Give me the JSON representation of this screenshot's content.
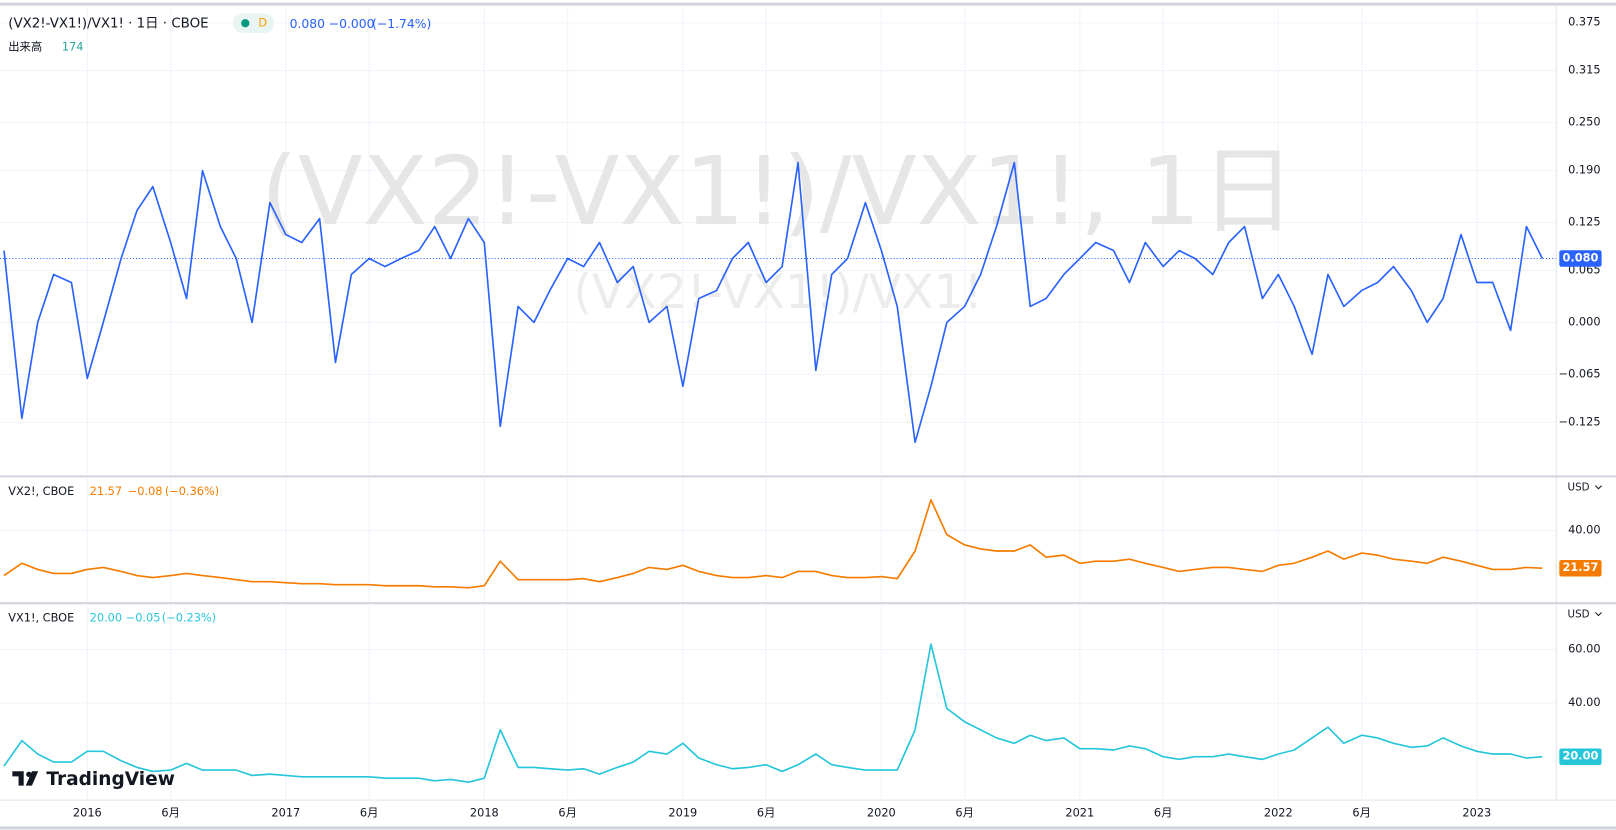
{
  "time_axis": {
    "xlim": [
      2015.56,
      2023.4
    ],
    "xticks": [
      2016,
      {
        "value": 2016.42,
        "label": "6月"
      },
      2017,
      {
        "value": 2017.42,
        "label": "6月"
      },
      2018,
      {
        "value": 2018.42,
        "label": "6月"
      },
      2019,
      {
        "value": 2019.42,
        "label": "6月"
      },
      2020,
      {
        "value": 2020.42,
        "label": "6月"
      },
      2021,
      {
        "value": 2021.42,
        "label": "6月"
      },
      2022,
      {
        "value": 2022.42,
        "label": "6月"
      },
      2023
    ],
    "x": [
      2015.58,
      2015.67,
      2015.75,
      2015.83,
      2015.92,
      2016,
      2016.08,
      2016.17,
      2016.25,
      2016.33,
      2016.42,
      2016.5,
      2016.58,
      2016.67,
      2016.75,
      2016.83,
      2016.92,
      2017,
      2017.08,
      2017.17,
      2017.25,
      2017.33,
      2017.42,
      2017.5,
      2017.58,
      2017.67,
      2017.75,
      2017.83,
      2017.92,
      2018,
      2018.08,
      2018.17,
      2018.25,
      2018.33,
      2018.42,
      2018.5,
      2018.58,
      2018.67,
      2018.75,
      2018.83,
      2018.92,
      2019,
      2019.08,
      2019.17,
      2019.25,
      2019.33,
      2019.42,
      2019.5,
      2019.58,
      2019.67,
      2019.75,
      2019.83,
      2019.92,
      2020,
      2020.08,
      2020.17,
      2020.25,
      2020.33,
      2020.42,
      2020.5,
      2020.58,
      2020.67,
      2020.75,
      2020.83,
      2020.92,
      2021,
      2021.08,
      2021.17,
      2021.25,
      2021.33,
      2021.42,
      2021.5,
      2021.58,
      2021.67,
      2021.75,
      2021.83,
      2021.92,
      2022,
      2022.08,
      2022.17,
      2022.25,
      2022.33,
      2022.42,
      2022.5,
      2022.58,
      2022.67,
      2022.75,
      2022.83,
      2022.92,
      2023,
      2023.08,
      2023.17,
      2023.25,
      2023.33
    ]
  },
  "chart_data": [
    {
      "type": "line",
      "color": "#2962ff",
      "legend": {
        "title": "(VX2!-VX1!)/VX1! · 1日 · CBOE",
        "interval": "D",
        "last": "0.080",
        "change": "−0.000",
        "change_pct": "(−1.74%)"
      },
      "volume": {
        "label": "出来高",
        "last": "174"
      },
      "watermark": [
        "(VX2!-VX1!)/VX1!, 1日",
        "(VX2!-VX1!)/VX1!"
      ],
      "price_tag": "0.080",
      "ylim": [
        -0.19,
        0.397
      ],
      "yticks": [
        {
          "value": 0.375,
          "label": "0.375"
        },
        {
          "value": 0.315,
          "label": "0.315"
        },
        {
          "value": 0.25,
          "label": "0.250"
        },
        {
          "value": 0.19,
          "label": "0.190"
        },
        {
          "value": 0.125,
          "label": "0.125"
        },
        {
          "value": 0.065,
          "label": "0.065"
        },
        {
          "value": 0,
          "label": "0.000"
        },
        {
          "value": -0.065,
          "label": "−0.065"
        },
        {
          "value": -0.125,
          "label": "−0.125"
        }
      ],
      "values": [
        0.09,
        -0.12,
        0.0,
        0.06,
        0.05,
        -0.07,
        0.0,
        0.08,
        0.14,
        0.17,
        0.1,
        0.03,
        0.19,
        0.12,
        0.08,
        0.0,
        0.15,
        0.11,
        0.1,
        0.13,
        -0.05,
        0.06,
        0.08,
        0.07,
        0.08,
        0.09,
        0.12,
        0.08,
        0.13,
        0.1,
        -0.13,
        0.02,
        0.0,
        0.04,
        0.08,
        0.07,
        0.1,
        0.05,
        0.07,
        0.0,
        0.02,
        -0.08,
        0.03,
        0.04,
        0.08,
        0.1,
        0.05,
        0.07,
        0.2,
        -0.06,
        0.06,
        0.08,
        0.15,
        0.09,
        0.02,
        -0.15,
        -0.08,
        0.0,
        0.02,
        0.06,
        0.12,
        0.2,
        0.02,
        0.03,
        0.06,
        0.08,
        0.1,
        0.09,
        0.05,
        0.1,
        0.07,
        0.09,
        0.08,
        0.06,
        0.1,
        0.12,
        0.03,
        0.06,
        0.02,
        -0.04,
        0.06,
        0.02,
        0.04,
        0.05,
        0.07,
        0.04,
        0.0,
        0.03,
        0.11,
        0.05,
        0.05,
        -0.01,
        0.12,
        0.08
      ]
    },
    {
      "type": "line",
      "color": "#f57c00",
      "legend": {
        "title": "VX2!, CBOE",
        "last": "21.57",
        "change": "−0.08",
        "change_pct": "(−0.36%)"
      },
      "currency": "USD",
      "price_tag": "21.57",
      "ylim": [
        5.5,
        65.5
      ],
      "yticks": [
        {
          "value": 40,
          "label": "40.00"
        }
      ],
      "values": [
        18,
        24,
        21,
        19,
        19,
        21,
        22,
        20,
        18,
        17,
        18,
        19,
        18,
        17,
        16,
        15,
        15,
        14.5,
        14,
        14,
        13.5,
        13.5,
        13.5,
        13,
        13,
        13,
        12.5,
        12.5,
        12,
        13,
        25,
        16,
        16,
        16,
        16,
        16.5,
        15,
        17,
        19,
        22,
        21,
        23,
        20,
        18,
        17,
        17,
        18,
        17,
        20,
        20,
        18,
        17,
        17,
        17.5,
        16.5,
        30,
        55,
        38,
        33,
        31,
        30,
        30,
        33,
        27,
        28,
        24,
        25,
        25,
        26,
        24,
        22,
        20,
        21,
        22,
        22,
        21,
        20,
        23,
        24,
        27,
        30,
        26,
        29,
        28,
        26,
        25,
        24,
        27,
        25,
        23,
        21,
        21,
        22,
        21.57
      ]
    },
    {
      "type": "line",
      "color": "#26c6da",
      "legend": {
        "title": "VX1!, CBOE",
        "last": "20.00",
        "change": "−0.05",
        "change_pct": "(−0.23%)"
      },
      "currency": "USD",
      "price_tag": "20.00",
      "ylim": [
        4.2,
        76.5
      ],
      "yticks": [
        {
          "value": 60,
          "label": "60.00"
        },
        {
          "value": 40,
          "label": "40.00"
        }
      ],
      "values": [
        16.5,
        26,
        21,
        18,
        18,
        22,
        22,
        18.5,
        16,
        14.5,
        15,
        17.5,
        15,
        15,
        15,
        13,
        13.5,
        13,
        12.5,
        12.5,
        12.5,
        12.5,
        12.5,
        12,
        12,
        12,
        11,
        11.5,
        10.5,
        12,
        30,
        16,
        16,
        15.5,
        15,
        15.5,
        13.5,
        16,
        18,
        22,
        21,
        25,
        19.5,
        17,
        15.5,
        16,
        17,
        14.5,
        17,
        21,
        17,
        16,
        15,
        15,
        15,
        30,
        62,
        38,
        33,
        30,
        27,
        25,
        28,
        26,
        27,
        23,
        23,
        22.5,
        24,
        23,
        20,
        19,
        20,
        20,
        21,
        20,
        19,
        21,
        22.5,
        27,
        31,
        25,
        28,
        27,
        25,
        23.5,
        24,
        27,
        24,
        22,
        21,
        21,
        19.5,
        20
      ]
    }
  ],
  "branding": "TradingView"
}
